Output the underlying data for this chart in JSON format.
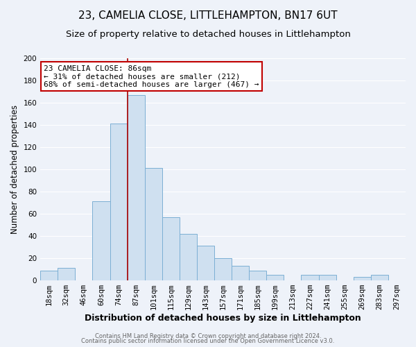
{
  "title": "23, CAMELIA CLOSE, LITTLEHAMPTON, BN17 6UT",
  "subtitle": "Size of property relative to detached houses in Littlehampton",
  "xlabel": "Distribution of detached houses by size in Littlehampton",
  "ylabel": "Number of detached properties",
  "footer_line1": "Contains HM Land Registry data © Crown copyright and database right 2024.",
  "footer_line2": "Contains public sector information licensed under the Open Government Licence v3.0.",
  "bar_labels": [
    "18sqm",
    "32sqm",
    "46sqm",
    "60sqm",
    "74sqm",
    "87sqm",
    "101sqm",
    "115sqm",
    "129sqm",
    "143sqm",
    "157sqm",
    "171sqm",
    "185sqm",
    "199sqm",
    "213sqm",
    "227sqm",
    "241sqm",
    "255sqm",
    "269sqm",
    "283sqm",
    "297sqm"
  ],
  "bar_values": [
    9,
    11,
    0,
    71,
    141,
    167,
    101,
    57,
    42,
    31,
    20,
    13,
    9,
    5,
    0,
    5,
    5,
    0,
    3,
    5,
    0
  ],
  "bar_color": "#cfe0f0",
  "bar_edge_color": "#7bafd4",
  "annotation_title": "23 CAMELIA CLOSE: 86sqm",
  "annotation_line1": "← 31% of detached houses are smaller (212)",
  "annotation_line2": "68% of semi-detached houses are larger (467) →",
  "annotation_box_facecolor": "#ffffff",
  "annotation_box_edgecolor": "#c00000",
  "vline_color": "#aa0000",
  "ylim": [
    0,
    200
  ],
  "yticks": [
    0,
    20,
    40,
    60,
    80,
    100,
    120,
    140,
    160,
    180,
    200
  ],
  "background_color": "#eef2f9",
  "grid_color": "#ffffff",
  "title_fontsize": 11,
  "subtitle_fontsize": 9.5,
  "xlabel_fontsize": 9,
  "ylabel_fontsize": 8.5,
  "tick_fontsize": 7.5,
  "annotation_fontsize": 8,
  "footer_fontsize": 6,
  "footer_color": "#666666"
}
